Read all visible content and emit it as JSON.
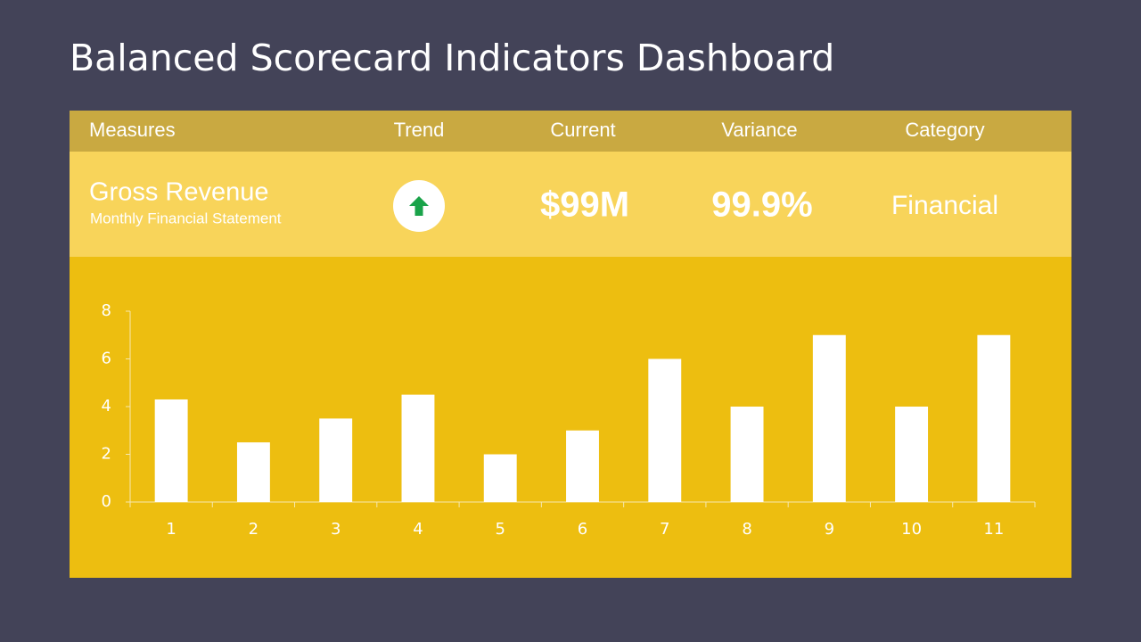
{
  "title": "Balanced Scorecard Indicators Dashboard",
  "table": {
    "headers": [
      "Measures",
      "Trend",
      "Current",
      "Variance",
      "Category"
    ],
    "row": {
      "measure": "Gross Revenue",
      "description": "Monthly Financial Statement",
      "current": "$99M",
      "variance": "99.9%",
      "category": "Financial"
    }
  },
  "chart_data": {
    "type": "bar",
    "categories": [
      "1",
      "2",
      "3",
      "4",
      "5",
      "6",
      "7",
      "8",
      "9",
      "10",
      "11"
    ],
    "values": [
      4.3,
      2.5,
      3.5,
      4.5,
      2,
      3,
      6,
      4,
      7,
      4,
      7
    ],
    "color": "#ffffff",
    "ylim": [
      0,
      8
    ],
    "yticks": [
      0,
      2,
      4,
      6,
      8
    ],
    "grid": false
  }
}
